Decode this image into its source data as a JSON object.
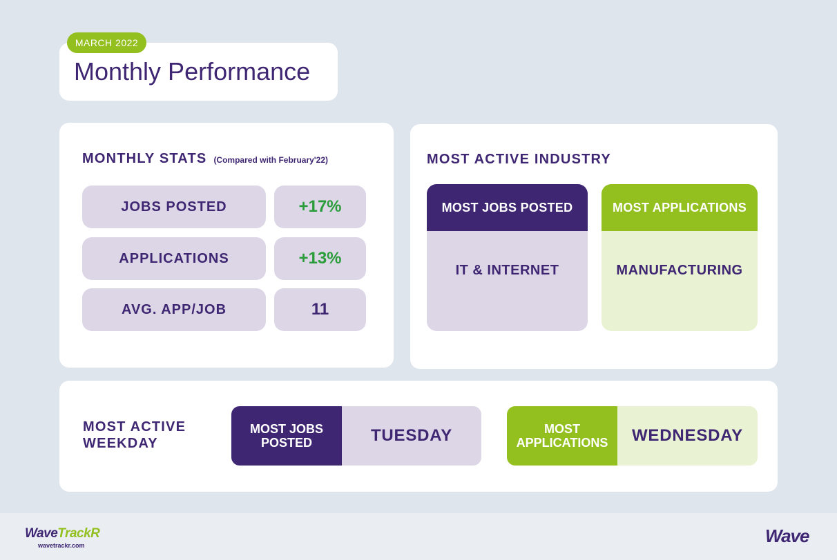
{
  "header": {
    "badge": "MARCH 2022",
    "title": "Monthly Performance"
  },
  "monthly_stats": {
    "heading": "MONTHLY STATS",
    "note": "(Compared with February'22)",
    "rows": [
      {
        "label": "JOBS POSTED",
        "value": "+17%"
      },
      {
        "label": "APPLICATIONS",
        "value": "+13%"
      },
      {
        "label": "AVG. APP/JOB",
        "value": "11"
      }
    ]
  },
  "industry": {
    "heading": "MOST ACTIVE INDUSTRY",
    "jobs": {
      "label": "MOST JOBS POSTED",
      "value": "IT & INTERNET"
    },
    "applications": {
      "label": "MOST APPLICATIONS",
      "value": "MANUFACTURING"
    }
  },
  "weekday": {
    "heading": "MOST ACTIVE WEEKDAY",
    "jobs": {
      "label": "MOST JOBS POSTED",
      "value": "TUESDAY"
    },
    "applications": {
      "label": "MOST APPLICATIONS",
      "value": "WEDNESDAY"
    }
  },
  "footer": {
    "brand_part1": "Wave",
    "brand_part2": "TrackR",
    "url": "wavetrackr.com",
    "company": "Wave"
  },
  "colors": {
    "purple": "#3e2672",
    "green": "#93c01f",
    "positive": "#2a9c3a"
  }
}
